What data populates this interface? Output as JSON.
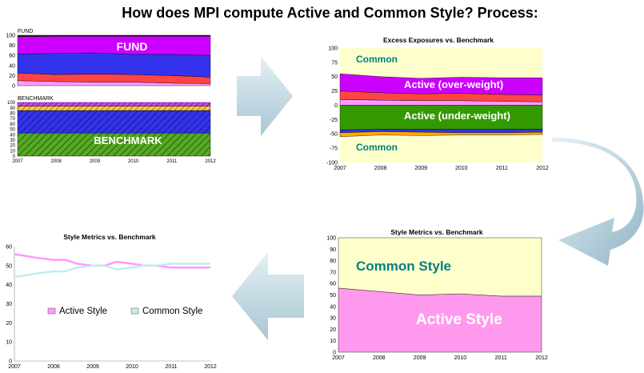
{
  "title": "How does MPI compute Active and Common Style? Process:",
  "colors": {
    "purple": "#cc00ff",
    "blue": "#3333ee",
    "red": "#ff4444",
    "pink": "#ff99ff",
    "green": "#339900",
    "orange": "#ffaa00",
    "yellow_bg": "#ffffcc",
    "teal": "#008080",
    "arrow": "#c8dde6"
  },
  "fund_panel": {
    "caption": "FUND",
    "overlay_label": "FUND",
    "y_ticks": [
      "100",
      "80",
      "60",
      "40",
      "20",
      "0"
    ]
  },
  "benchmark_panel": {
    "caption": "BENCHMARK",
    "overlay_label": "BENCHMARK",
    "y_ticks": [
      "100",
      "90",
      "80",
      "70",
      "60",
      "50",
      "40",
      "30",
      "20",
      "10",
      "0"
    ],
    "x_ticks": [
      "2007",
      "2008",
      "2009",
      "2010",
      "2011",
      "2012"
    ]
  },
  "excess_panel": {
    "title": "Excess Exposures vs. Benchmark",
    "y_ticks": [
      "100",
      "75",
      "50",
      "25",
      "0",
      "-25",
      "-50",
      "-75",
      "-100"
    ],
    "x_ticks": [
      "2007",
      "2008",
      "2009",
      "2010",
      "2011",
      "2012"
    ],
    "labels": {
      "common_top": "Common",
      "active_over": "Active (over-weight)",
      "active_under": "Active (under-weight)",
      "common_bottom": "Common"
    }
  },
  "style_area_panel": {
    "title": "Style Metrics vs. Benchmark",
    "y_ticks": [
      "100",
      "90",
      "80",
      "70",
      "60",
      "50",
      "40",
      "30",
      "20",
      "10",
      "0"
    ],
    "x_ticks": [
      "2007",
      "2008",
      "2009",
      "2010",
      "2011",
      "2012"
    ],
    "labels": {
      "common": "Common Style",
      "active": "Active Style"
    }
  },
  "style_line_panel": {
    "title": "Style Metrics vs. Benchmark",
    "y_ticks": [
      "60",
      "50",
      "40",
      "30",
      "20",
      "10",
      "0"
    ],
    "x_ticks": [
      "2007",
      "2008",
      "2009",
      "2010",
      "2011",
      "2012"
    ],
    "legend": [
      {
        "name": "Active Style",
        "color": "#ff99ff"
      },
      {
        "name": "Common Style",
        "color": "#bfeeee"
      }
    ]
  },
  "chart_data": [
    {
      "type": "area",
      "title": "",
      "xlabel": "",
      "ylabel": "",
      "ylim": [
        0,
        100
      ],
      "x": [
        2007,
        2008,
        2009,
        2010,
        2011,
        2012
      ],
      "series": [
        {
          "values": [
            10,
            8,
            7,
            7,
            5,
            4
          ]
        },
        {
          "values": [
            15,
            14,
            16,
            15,
            15,
            13
          ]
        },
        {
          "values": [
            38,
            42,
            42,
            40,
            42,
            43
          ]
        },
        {
          "values": [
            34,
            34,
            33,
            36,
            36,
            38
          ]
        },
        {
          "values": [
            3,
            2,
            2,
            2,
            2,
            2
          ]
        }
      ]
    },
    {
      "type": "area",
      "title": "",
      "ylim": [
        0,
        100
      ],
      "x": [
        2007,
        2008,
        2009,
        2010,
        2011,
        2012
      ],
      "series": [
        {
          "values": [
            43,
            43,
            43,
            43,
            43,
            43
          ]
        },
        {
          "values": [
            42,
            42,
            42,
            42,
            42,
            42
          ]
        },
        {
          "values": [
            8,
            8,
            8,
            8,
            8,
            8
          ]
        },
        {
          "values": [
            7,
            7,
            7,
            7,
            7,
            7
          ]
        }
      ]
    },
    {
      "type": "area",
      "title": "Excess Exposures vs. Benchmark",
      "ylim": [
        -100,
        100
      ],
      "x": [
        2007,
        2008,
        2009,
        2010,
        2011,
        2012
      ],
      "series": [
        {
          "values": [
            10,
            9,
            8,
            8,
            7,
            6
          ]
        },
        {
          "values": [
            15,
            13,
            12,
            13,
            12,
            12
          ]
        },
        {
          "values": [
            30,
            28,
            27,
            28,
            29,
            30
          ]
        },
        {
          "values": [
            -43,
            -42,
            -42,
            -42,
            -42,
            -42
          ]
        },
        {
          "values": [
            -5,
            -4,
            -5,
            -6,
            -6,
            -5
          ]
        },
        {
          "values": [
            -7,
            -6,
            -6,
            -4,
            -4,
            -4
          ]
        }
      ]
    },
    {
      "type": "area",
      "title": "Style Metrics vs. Benchmark",
      "ylim": [
        0,
        100
      ],
      "x": [
        2007,
        2008,
        2009,
        2010,
        2011,
        2012
      ],
      "series": [
        {
          "name": "Active Style",
          "values": [
            56,
            53,
            50,
            51,
            49,
            49
          ]
        },
        {
          "name": "Common Style",
          "values": [
            44,
            47,
            50,
            49,
            51,
            51
          ]
        }
      ]
    },
    {
      "type": "line",
      "title": "Style Metrics vs. Benchmark",
      "ylim": [
        0,
        60
      ],
      "x": [
        2007,
        2007.3,
        2007.6,
        2008,
        2008.3,
        2008.6,
        2009,
        2009.3,
        2009.6,
        2010,
        2010.3,
        2010.6,
        2011,
        2011.5,
        2012
      ],
      "series": [
        {
          "name": "Active Style",
          "values": [
            56,
            55,
            54,
            53,
            53,
            51,
            50,
            50,
            52,
            51,
            50,
            50,
            49,
            49,
            49
          ]
        },
        {
          "name": "Common Style",
          "values": [
            44,
            45,
            46,
            47,
            47,
            49,
            50,
            50,
            48,
            49,
            50,
            50,
            51,
            51,
            51
          ]
        }
      ]
    }
  ]
}
